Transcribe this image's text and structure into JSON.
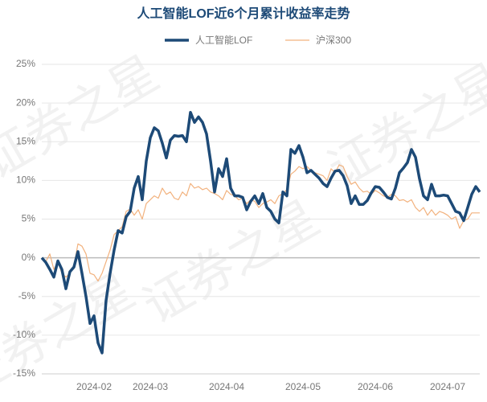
{
  "chart_data": {
    "type": "line",
    "title": "人工智能LOF近6个月累计收益率走势",
    "watermark": "证券之星",
    "legend": "top",
    "grid": true,
    "categories": [
      null,
      null,
      null,
      null,
      null,
      null,
      null,
      null,
      null,
      null,
      null,
      null,
      null,
      "2024-02",
      null,
      null,
      null,
      null,
      null,
      null,
      null,
      null,
      null,
      null,
      null,
      null,
      null,
      "2024-03",
      null,
      null,
      null,
      null,
      null,
      null,
      null,
      null,
      null,
      null,
      null,
      null,
      null,
      null,
      null,
      null,
      null,
      null,
      "2024-04",
      null,
      null,
      null,
      null,
      null,
      null,
      null,
      null,
      null,
      null,
      null,
      null,
      null,
      null,
      null,
      null,
      null,
      null,
      "2024-05",
      null,
      null,
      null,
      null,
      null,
      null,
      null,
      null,
      null,
      null,
      null,
      null,
      null,
      null,
      null,
      null,
      null,
      "2024-06",
      null,
      null,
      null,
      null,
      null,
      null,
      null,
      null,
      null,
      null,
      null,
      null,
      null,
      null,
      null,
      null,
      null,
      "2024-07",
      null,
      null,
      null,
      null,
      null,
      null,
      null,
      null
    ],
    "series": [
      {
        "name": "人工智能LOF",
        "color": "#1d4a77",
        "width": 3.5,
        "values": [
          0,
          -0.6,
          -1.5,
          -2.5,
          -0.4,
          -1.5,
          -4,
          -1.8,
          -1.2,
          0.8,
          -2,
          -5,
          -8.5,
          -7.5,
          -11,
          -12.3,
          -5.5,
          -2,
          1,
          3.5,
          3.2,
          5.3,
          6,
          9,
          10.5,
          7.5,
          12.5,
          15.5,
          16.8,
          16.4,
          14.8,
          12.9,
          15.2,
          15.8,
          15.7,
          15.8,
          15,
          18.8,
          17.5,
          18.2,
          17.5,
          16,
          12.5,
          8.5,
          11.5,
          10.5,
          12.8,
          9,
          8,
          8,
          7.8,
          6.2,
          7.3,
          8,
          7,
          8.3,
          6.5,
          6,
          5,
          4.5,
          8.5,
          8,
          14,
          13.5,
          14.5,
          13,
          11,
          11.3,
          10.8,
          10.3,
          9.6,
          9.2,
          10.3,
          11.2,
          11.3,
          10.6,
          9.3,
          7,
          8,
          6.9,
          6.9,
          7.4,
          8.4,
          9.2,
          9.1,
          8.5,
          7.8,
          7.6,
          9,
          11,
          11.6,
          12.3,
          14,
          13,
          10.2,
          8,
          7.5,
          9.5,
          8,
          8,
          8.1,
          8,
          7,
          6,
          5.8,
          4.8,
          6.5,
          8.2,
          9.2,
          8.5
        ]
      },
      {
        "name": "沪深300",
        "color": "#f2b27e",
        "width": 1.2,
        "values": [
          0,
          -0.5,
          0.5,
          -1.5,
          -0.5,
          -2,
          -2.5,
          -2,
          -1,
          1.8,
          1.5,
          0.5,
          -2,
          -2.2,
          -3,
          -2,
          -0.5,
          1,
          3,
          3.5,
          4,
          6,
          6.3,
          5.5,
          6.2,
          5,
          7,
          7.5,
          8,
          7.7,
          9,
          8.2,
          8.5,
          7.7,
          7.5,
          8.5,
          8,
          9.6,
          9,
          9.2,
          8.8,
          9,
          8.5,
          8.3,
          8,
          7.5,
          8.7,
          8.2,
          8,
          7.5,
          7.7,
          7,
          7.5,
          7.3,
          6.5,
          7,
          7.2,
          7.5,
          7,
          8,
          8.3,
          8.8,
          10.8,
          11.2,
          11.8,
          11.5,
          11.8,
          11.3,
          11,
          10.8,
          10.6,
          10,
          11.5,
          11,
          12,
          11.8,
          10.5,
          9.5,
          9.8,
          9,
          8.5,
          8.6,
          8.2,
          8.7,
          8.4,
          8,
          7.8,
          8.2,
          8,
          7.4,
          7.5,
          7.2,
          7.5,
          6.5,
          6,
          6.5,
          5.5,
          6.2,
          5.5,
          6,
          5.8,
          5.5,
          5,
          5.3,
          3.8,
          4.8,
          5,
          5.8,
          5.8,
          5.8
        ]
      }
    ],
    "ylim": [
      -15,
      25
    ],
    "yticks": [
      {
        "value": -15,
        "label": "-15%"
      },
      {
        "value": -10,
        "label": "-10%"
      },
      {
        "value": -5,
        "label": "-5%"
      },
      {
        "value": 0,
        "label": "0%"
      },
      {
        "value": 5,
        "label": "5%"
      },
      {
        "value": 10,
        "label": "10%"
      },
      {
        "value": 15,
        "label": "15%"
      },
      {
        "value": 20,
        "label": "20%"
      },
      {
        "value": 25,
        "label": "25%"
      }
    ]
  }
}
